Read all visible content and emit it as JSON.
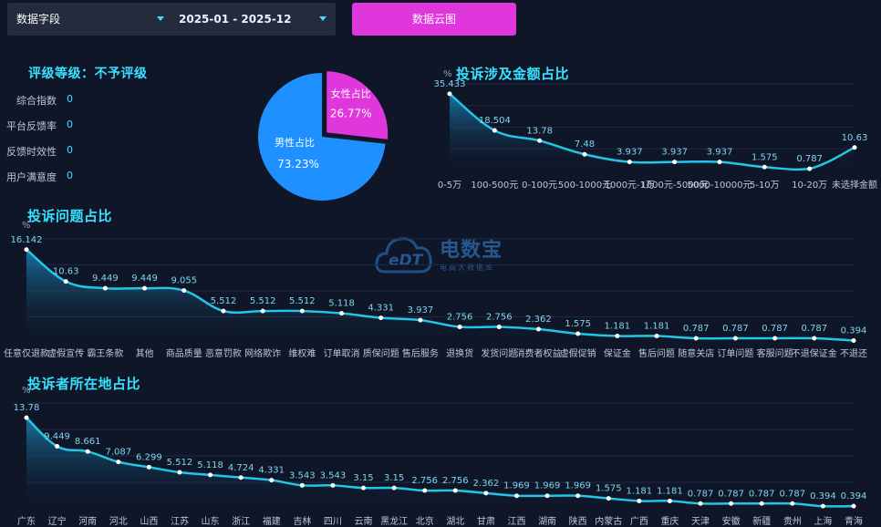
{
  "filters": {
    "field_select": "数据字段",
    "date_range": "2025-01 - 2025-12",
    "cloud_button": "数据云图"
  },
  "rating": {
    "title": "评级等级：不予评级",
    "items": [
      {
        "label": "综合指数",
        "value": "0"
      },
      {
        "label": "平台反馈率",
        "value": "0"
      },
      {
        "label": "反馈时效性",
        "value": "0"
      },
      {
        "label": "用户满意度",
        "value": "0"
      }
    ]
  },
  "watermark": {
    "name": "电数宝",
    "sub": "电商大数据库",
    "logo": "eDT"
  },
  "colors": {
    "accent": "#38e1ff",
    "line": "#22c6e6",
    "male": "#1e90ff",
    "female": "#e037dd",
    "button": "#e037dd"
  },
  "chart_data": [
    {
      "id": "gender",
      "type": "pie",
      "labels": [
        "女性占比",
        "男性占比"
      ],
      "values": [
        26.77,
        73.23
      ],
      "display": [
        "26.77%",
        "73.23%"
      ]
    },
    {
      "id": "amount",
      "type": "area",
      "title": "投诉涉及金额占比",
      "ylabel": "%",
      "categories": [
        "0-5万",
        "100-500元",
        "0-100元",
        "500-1000元",
        "1000元-1万",
        "1000元-5000元",
        "5000-10000元",
        "5-10万",
        "10-20万",
        "未选择金额"
      ],
      "values": [
        35.433,
        18.504,
        13.78,
        7.48,
        3.937,
        3.937,
        3.937,
        1.575,
        0.787,
        10.63
      ],
      "labels": [
        "35.433",
        "18.504",
        "13.78",
        "7.48",
        "3.937",
        "3.937",
        "3.937",
        "1.575",
        "0.787",
        "10.63"
      ],
      "ylim": [
        0,
        40
      ]
    },
    {
      "id": "issue",
      "type": "area",
      "title": "投诉问题占比",
      "ylabel": "%",
      "categories": [
        "任意仅退款",
        "虚假宣传",
        "霸王条款",
        "其他",
        "商品质量",
        "恶意罚款",
        "网络欺诈",
        "维权难",
        "订单取消",
        "质保问题",
        "售后服务",
        "退换货",
        "发货问题",
        "消费者权益",
        "虚假促销",
        "保证金",
        "售后问题",
        "随意关店",
        "订单问题",
        "客服问题",
        "不退保证金",
        "不退还"
      ],
      "values": [
        16.142,
        10.63,
        9.449,
        9.449,
        9.055,
        5.512,
        5.512,
        5.512,
        5.118,
        4.331,
        3.937,
        2.756,
        2.756,
        2.362,
        1.575,
        1.181,
        1.181,
        0.787,
        0.787,
        0.787,
        0.787,
        0.394
      ],
      "labels": [
        "16.142",
        "10.63",
        "9.449",
        "9.449",
        "9.055",
        "5.512",
        "5.512",
        "5.512",
        "5.118",
        "4.331",
        "3.937",
        "2.756",
        "2.756",
        "2.362",
        "1.575",
        "1.181",
        "1.181",
        "0.787",
        "0.787",
        "0.787",
        "0.787",
        "0.394"
      ],
      "ylim": [
        0,
        18
      ]
    },
    {
      "id": "region",
      "type": "area",
      "title": "投诉者所在地占比",
      "ylabel": "%",
      "categories": [
        "广东",
        "辽宁",
        "河南",
        "河北",
        "山西",
        "江苏",
        "山东",
        "浙江",
        "福建",
        "吉林",
        "四川",
        "云南",
        "黑龙江",
        "北京",
        "湖北",
        "甘肃",
        "江西",
        "湖南",
        "陕西",
        "内蒙古",
        "广西",
        "重庆",
        "天津",
        "安徽",
        "新疆",
        "贵州",
        "上海",
        "青海"
      ],
      "values": [
        13.78,
        9.449,
        8.661,
        7.087,
        6.299,
        5.512,
        5.118,
        4.724,
        4.331,
        3.543,
        3.543,
        3.15,
        3.15,
        2.756,
        2.756,
        2.362,
        1.969,
        1.969,
        1.969,
        1.575,
        1.181,
        1.181,
        0.787,
        0.787,
        0.787,
        0.787,
        0.394,
        0.394
      ],
      "labels": [
        "13.78",
        "9.449",
        "8.661",
        "7.087",
        "6.299",
        "5.512",
        "5.118",
        "4.724",
        "4.331",
        "3.543",
        "3.543",
        "3.15",
        "3.15",
        "2.756",
        "2.756",
        "2.362",
        "1.969",
        "1.969",
        "1.969",
        "1.575",
        "1.181",
        "1.181",
        "0.787",
        "0.787",
        "0.787",
        "0.787",
        "0.394",
        "0.394"
      ],
      "ylim": [
        0,
        16
      ]
    }
  ]
}
